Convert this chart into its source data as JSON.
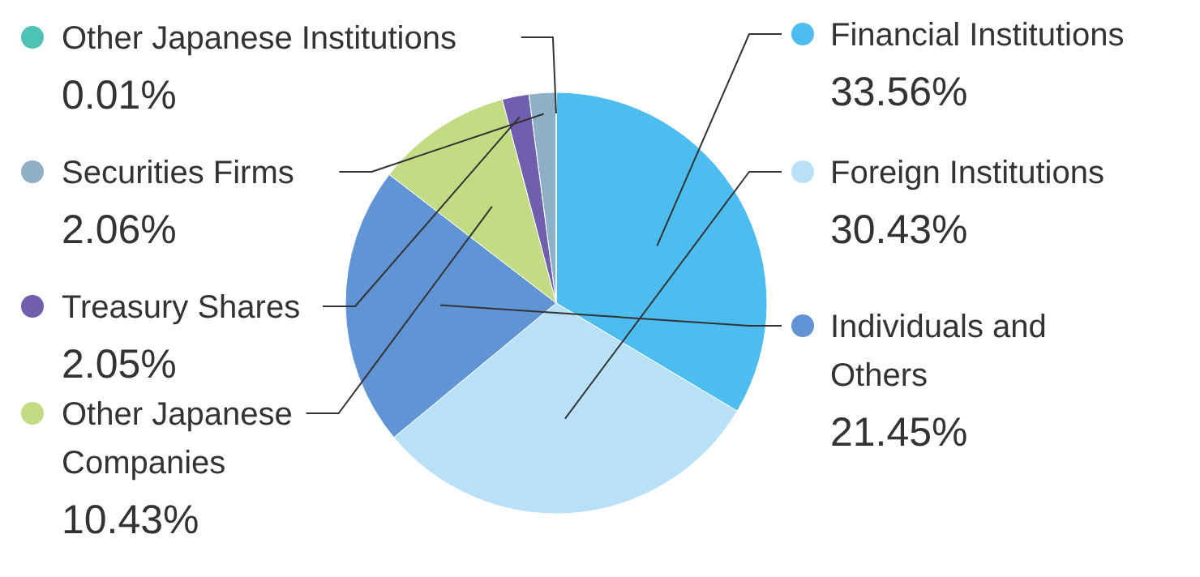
{
  "chart_data": {
    "type": "pie",
    "categories": [
      "Financial Institutions",
      "Foreign Institutions",
      "Individuals and Others",
      "Other Japanese Companies",
      "Treasury Shares",
      "Securities Firms",
      "Other Japanese Institutions"
    ],
    "values": [
      33.56,
      30.43,
      21.45,
      10.43,
      2.05,
      2.06,
      0.01
    ],
    "value_labels": [
      "33.56%",
      "30.43%",
      "21.45%",
      "10.43%",
      "2.05%",
      "2.06%",
      "0.01%"
    ],
    "legend": "left",
    "colors": [
      "#4dbdef",
      "#b8e1f7",
      "#6194d4",
      "#c3dc84",
      "#6f5fad",
      "#8db0c6",
      "#4fc2b7"
    ]
  }
}
